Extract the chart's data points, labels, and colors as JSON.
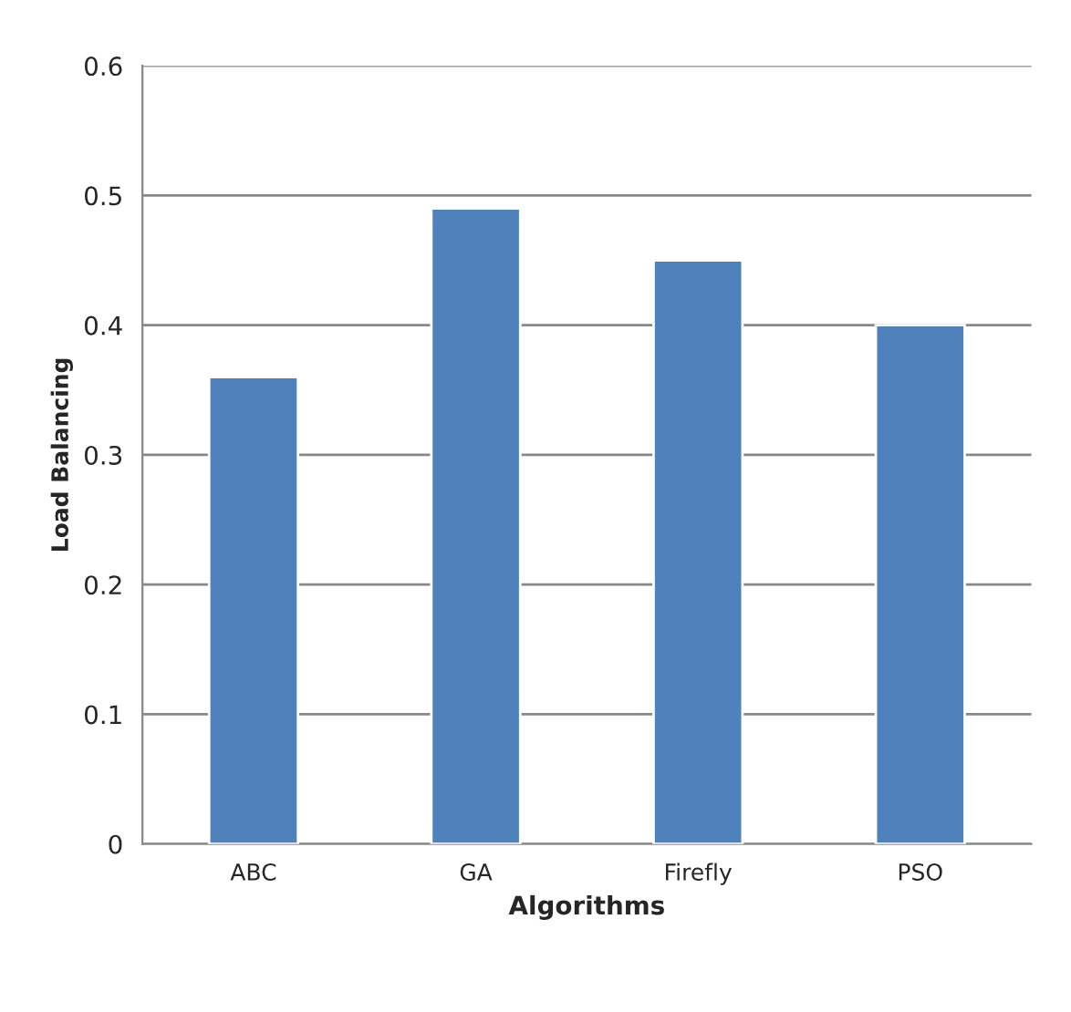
{
  "chart_data": {
    "type": "bar",
    "xlabel": "Algorithms",
    "ylabel": "Load Balancing",
    "categories": [
      "ABC",
      "GA",
      "Firefly",
      "PSO"
    ],
    "values": [
      0.36,
      0.49,
      0.45,
      0.4
    ],
    "color": "#4f81bd",
    "ylim": [
      0,
      0.6
    ],
    "yticks": [
      0,
      0.1,
      0.2,
      0.3,
      0.4,
      0.5,
      0.6
    ],
    "grid": "y",
    "legend": false
  }
}
